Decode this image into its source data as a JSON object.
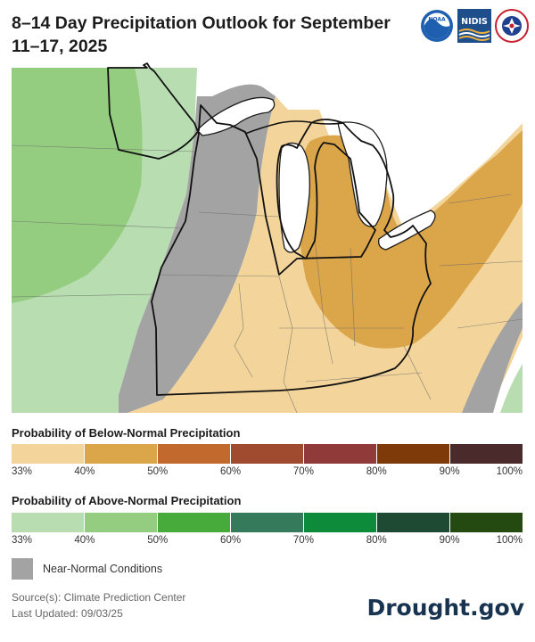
{
  "title": "8–14 Day Precipitation Outlook for September 11–17, 2025",
  "logos": {
    "noaa": {
      "icon": "noaa-logo",
      "text": "NOAA"
    },
    "nidis": {
      "icon": "nidis-logo",
      "text": "NIDIS"
    },
    "nws": {
      "icon": "nws-logo"
    }
  },
  "legend_below": {
    "title": "Probability of Below-Normal Precipitation",
    "colors": [
      "#f3d49a",
      "#dba54a",
      "#c2692e",
      "#a04a30",
      "#913a3a",
      "#7e3a08",
      "#4a2a2a"
    ],
    "ticks": [
      "33%",
      "40%",
      "50%",
      "60%",
      "70%",
      "80%",
      "90%",
      "100%"
    ]
  },
  "legend_above": {
    "title": "Probability of Above-Normal Precipitation",
    "colors": [
      "#b8ddb0",
      "#94cd80",
      "#47ab3c",
      "#357a5a",
      "#0d8a3a",
      "#1e4a34",
      "#244a12"
    ],
    "ticks": [
      "33%",
      "40%",
      "50%",
      "60%",
      "70%",
      "80%",
      "90%",
      "100%"
    ]
  },
  "near_normal": {
    "label": "Near-Normal Conditions",
    "color": "#a3a3a3"
  },
  "source": "Source(s): Climate Prediction Center",
  "updated": "Last Updated: 09/03/25",
  "brand": "Drought.gov",
  "map": {
    "region": "Upper Midwest / Great Lakes",
    "zones": [
      {
        "category": "above-normal 40-50%",
        "color": "#94cd80"
      },
      {
        "category": "above-normal 33-40%",
        "color": "#b8ddb0"
      },
      {
        "category": "near-normal",
        "color": "#a3a3a3"
      },
      {
        "category": "below-normal 33-40%",
        "color": "#f3d49a"
      },
      {
        "category": "below-normal 40-50%",
        "color": "#dba54a"
      }
    ]
  }
}
